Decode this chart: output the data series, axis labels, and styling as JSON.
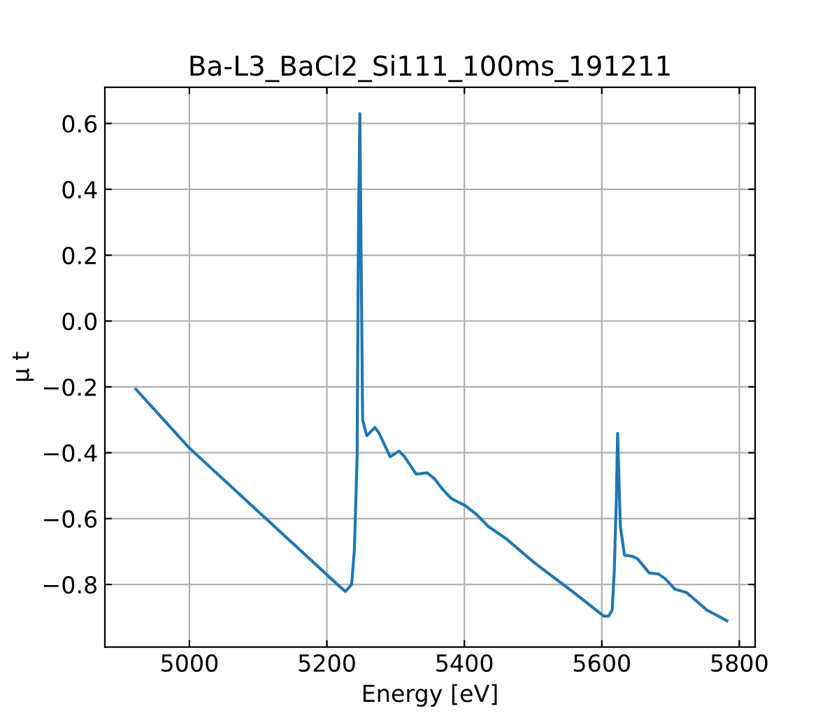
{
  "chart_data": {
    "type": "line",
    "title": "Ba-L3_BaCl2_Si111_100ms_191211",
    "xlabel": "Energy [eV]",
    "ylabel": "μ t",
    "xlim": [
      4877,
      5823
    ],
    "ylim": [
      -0.99,
      0.71
    ],
    "xticks": [
      5000,
      5200,
      5400,
      5600,
      5800
    ],
    "yticks": [
      {
        "value": -0.8,
        "label": "−0.8"
      },
      {
        "value": -0.6,
        "label": "−0.6"
      },
      {
        "value": -0.4,
        "label": "−0.4"
      },
      {
        "value": -0.2,
        "label": "−0.2"
      },
      {
        "value": 0.0,
        "label": "0.0"
      },
      0.2,
      0.4,
      0.6
    ],
    "grid": true,
    "marker": "none",
    "line_style": "solid",
    "series": [
      {
        "color": "#1f77b4",
        "x": [
          4922,
          5000,
          5219,
          5227,
          5236,
          5240,
          5244,
          5246,
          5248,
          5250,
          5252,
          5258,
          5270,
          5276,
          5292,
          5305,
          5313,
          5330,
          5346,
          5357,
          5368,
          5381,
          5401,
          5418,
          5435,
          5462,
          5503,
          5557,
          5603,
          5610,
          5615,
          5618,
          5621,
          5623,
          5625,
          5627,
          5633,
          5645,
          5652,
          5669,
          5682,
          5692,
          5706,
          5723,
          5733,
          5753,
          5782
        ],
        "values": [
          -0.207,
          -0.386,
          -0.807,
          -0.821,
          -0.8,
          -0.694,
          -0.412,
          0.294,
          0.63,
          0.153,
          -0.3,
          -0.348,
          -0.323,
          -0.341,
          -0.412,
          -0.395,
          -0.412,
          -0.465,
          -0.461,
          -0.48,
          -0.51,
          -0.539,
          -0.56,
          -0.588,
          -0.624,
          -0.663,
          -0.736,
          -0.821,
          -0.896,
          -0.896,
          -0.878,
          -0.765,
          -0.553,
          -0.341,
          -0.482,
          -0.624,
          -0.711,
          -0.715,
          -0.722,
          -0.765,
          -0.768,
          -0.782,
          -0.814,
          -0.824,
          -0.842,
          -0.878,
          -0.91
        ]
      }
    ]
  }
}
